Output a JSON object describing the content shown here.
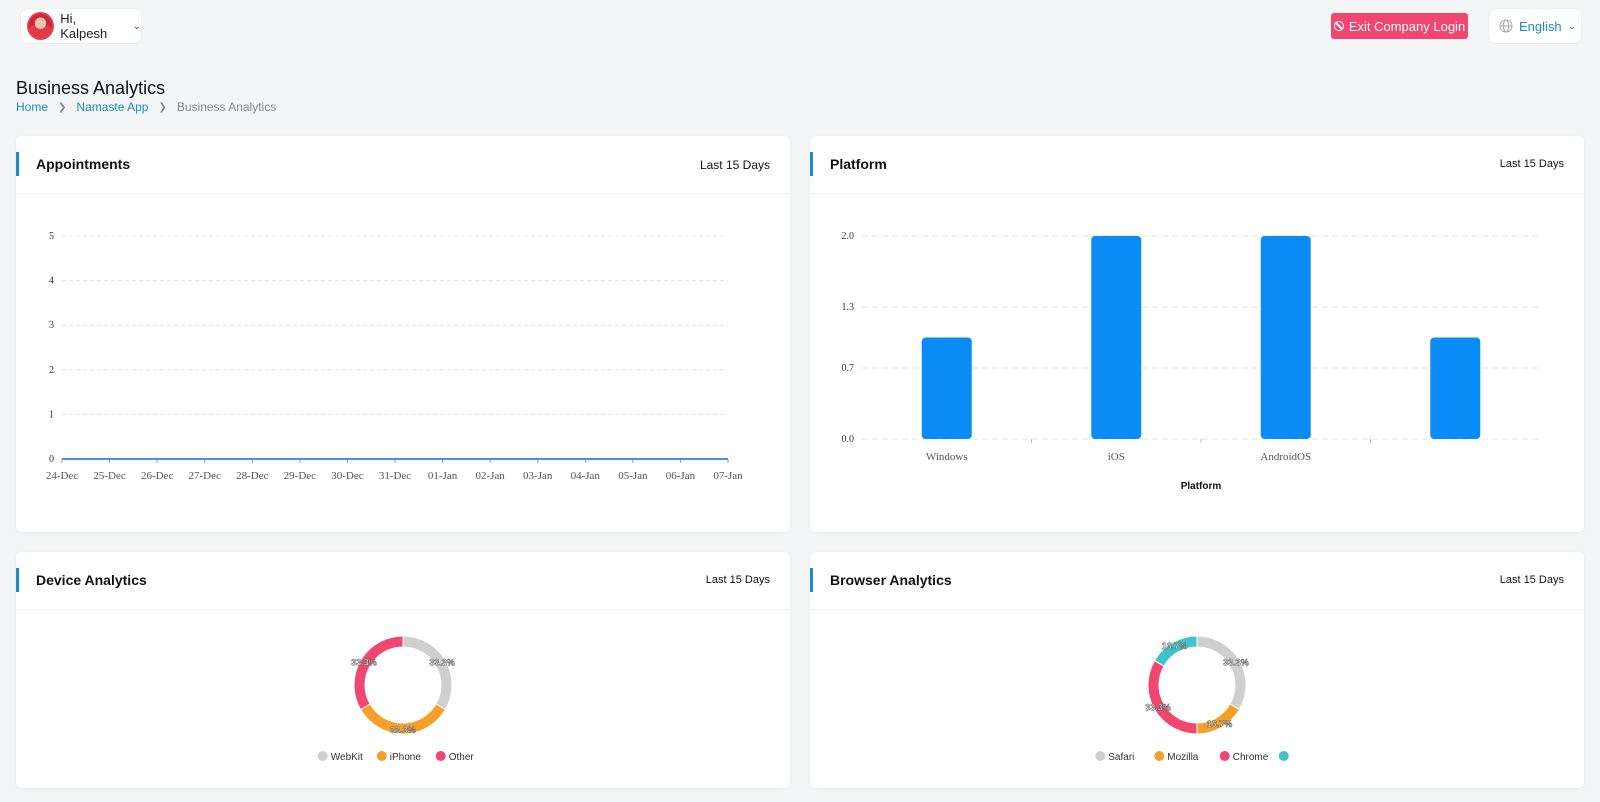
{
  "header": {
    "greeting": "Hi, Kalpesh",
    "exit_button": "Exit Company Login",
    "language": "English"
  },
  "page": {
    "title": "Business Analytics",
    "breadcrumb": [
      "Home",
      "Namaste App",
      "Business Analytics"
    ]
  },
  "colors": {
    "accent": "#1a8cc8",
    "exit": "#f0466f",
    "bar": "#0a8cf6",
    "webkit": "#cfcfcf",
    "iphone": "#f5a02a",
    "other": "#f0466f",
    "teal": "#3fc3cf"
  },
  "cards": {
    "appointments": {
      "title": "Appointments",
      "range": "Last 15 Days"
    },
    "platform": {
      "title": "Platform",
      "range": "Last 15 Days"
    },
    "device": {
      "title": "Device Analytics",
      "range": "Last 15 Days"
    },
    "browser": {
      "title": "Browser Analytics",
      "range": "Last 15 Days"
    }
  },
  "chart_data": [
    {
      "type": "line",
      "x": [
        "24-Dec",
        "25-Dec",
        "26-Dec",
        "27-Dec",
        "28-Dec",
        "29-Dec",
        "30-Dec",
        "31-Dec",
        "01-Jan",
        "02-Jan",
        "03-Jan",
        "04-Jan",
        "05-Jan",
        "06-Jan",
        "07-Jan"
      ],
      "values": [
        0,
        0,
        0,
        0,
        0,
        0,
        0,
        0,
        0,
        0,
        0,
        0,
        0,
        0,
        0
      ],
      "ylim": [
        0,
        5
      ],
      "yticks": [
        "0",
        "1",
        "2",
        "3",
        "4",
        "5"
      ],
      "grid": true
    },
    {
      "type": "bar",
      "categories": [
        "Windows",
        "iOS",
        "AndroidOS",
        ""
      ],
      "values": [
        1,
        2,
        2,
        1
      ],
      "xlabel": "Platform",
      "ylim": [
        0,
        2
      ],
      "yticks": [
        "0.0",
        "0.7",
        "1.3",
        "2.0"
      ],
      "grid": true
    },
    {
      "type": "pie",
      "slices": [
        {
          "name": "WebKit",
          "value": 33.3,
          "label": "33.3%",
          "color": "#cfcfcf"
        },
        {
          "name": "iPhone",
          "value": 33.3,
          "label": "33.3%",
          "color": "#f5a02a"
        },
        {
          "name": "Other",
          "value": 33.3,
          "label": "33.3%",
          "color": "#f0466f"
        }
      ],
      "legend": "bottom"
    },
    {
      "type": "pie",
      "slices": [
        {
          "name": "Safari",
          "value": 33.3,
          "label": "33.3%",
          "color": "#cfcfcf"
        },
        {
          "name": "Mozilla",
          "value": 16.7,
          "label": "16.7%",
          "color": "#f5a02a"
        },
        {
          "name": "Chrome",
          "value": 33.3,
          "label": "33.3%",
          "color": "#f0466f"
        },
        {
          "name": "",
          "value": 16.7,
          "label": "16.7%",
          "color": "#3fc3cf"
        }
      ],
      "legend": "bottom"
    }
  ]
}
